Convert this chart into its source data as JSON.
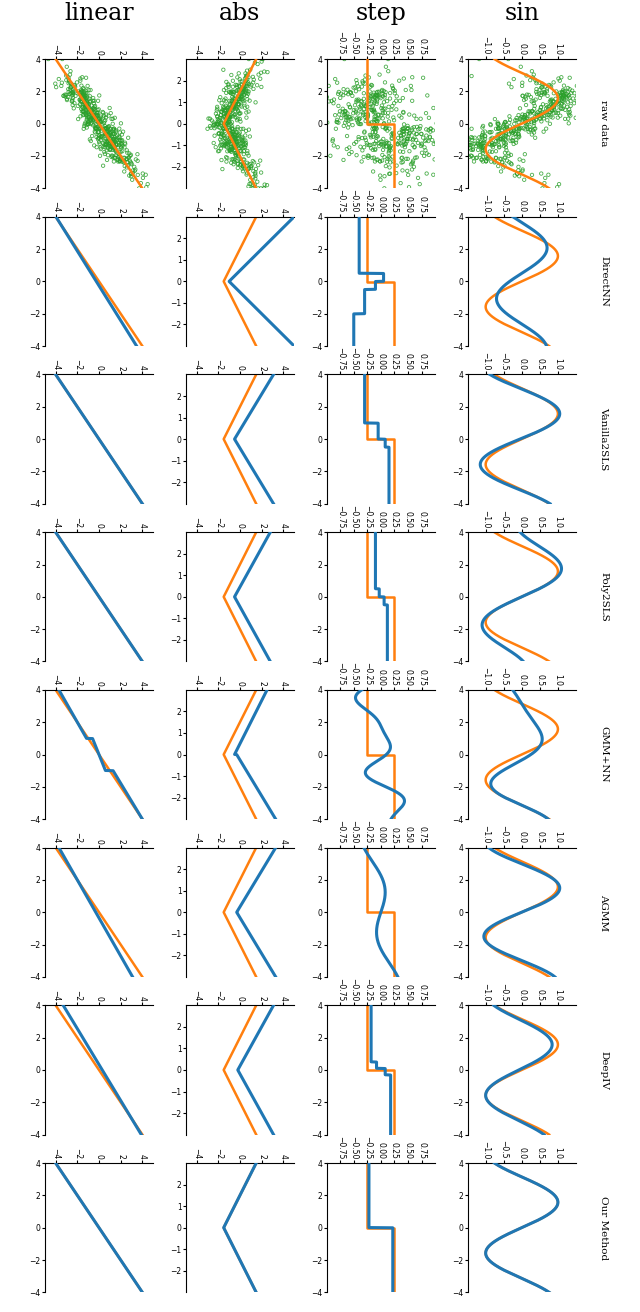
{
  "col_titles": [
    "linear",
    "abs",
    "step",
    "sin"
  ],
  "row_labels": [
    "raw data",
    "DirectNN",
    "Vanilla2SLS",
    "Poly2SLS",
    "GMM+NN",
    "AGMM",
    "DeepIV",
    "Our Method"
  ],
  "scatter_color": "#2ca02c",
  "true_color": "#ff7f0e",
  "pred_color": "#1f77b4",
  "figsize": [
    6.4,
    13.12
  ],
  "dpi": 100
}
